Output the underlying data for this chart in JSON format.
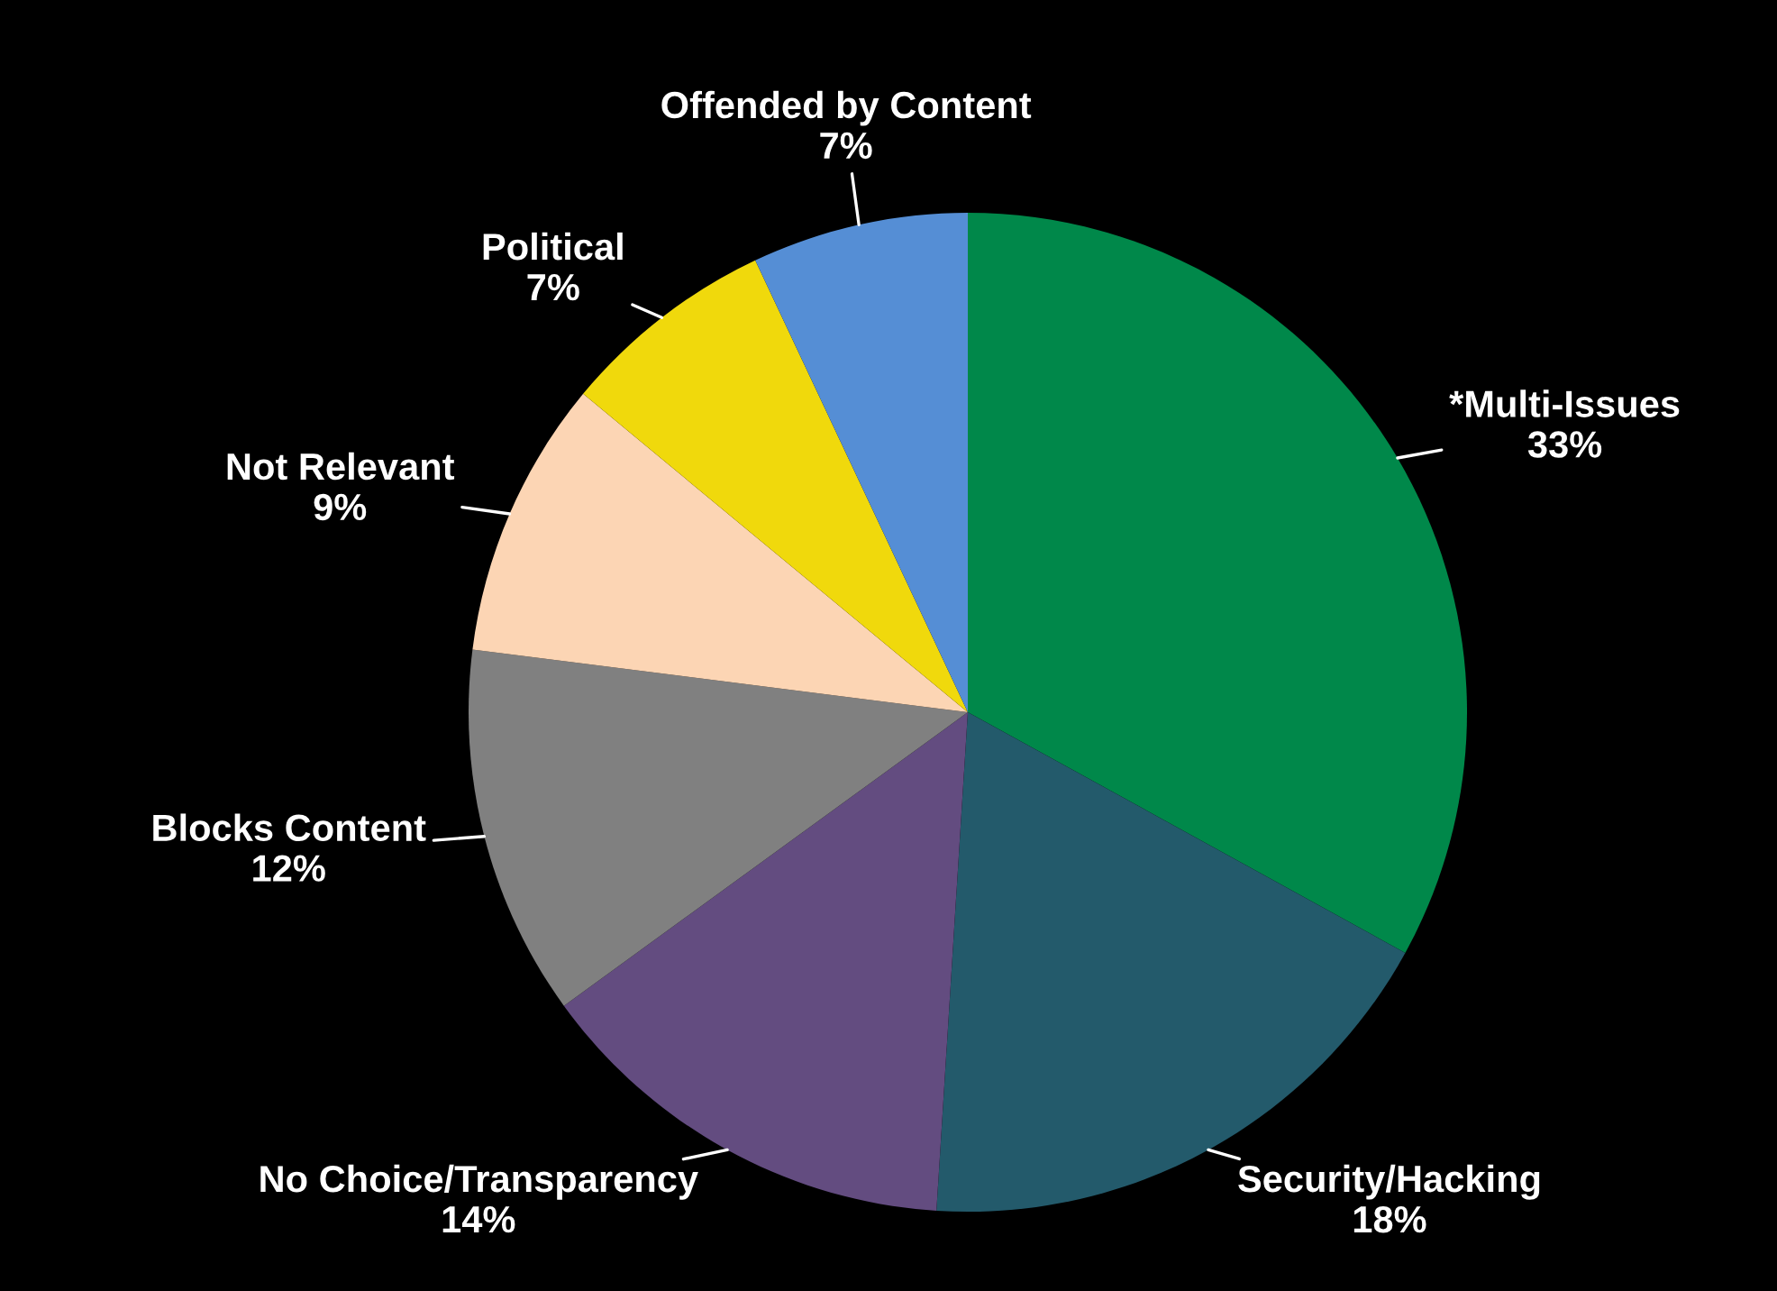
{
  "chart_data": {
    "type": "pie",
    "categories": [
      "*Multi-Issues",
      "Security/Hacking",
      "No Choice/Transparency",
      "Blocks Content",
      "Not Relevant",
      "Political",
      "Offended by Content"
    ],
    "values": [
      33,
      18,
      14,
      12,
      9,
      7,
      7
    ],
    "colors": [
      "#00884a",
      "#235a6b",
      "#634c80",
      "#808080",
      "#fcd5b4",
      "#f0d90c",
      "#558ed5"
    ],
    "value_labels": [
      "33%",
      "18%",
      "14%",
      "12%",
      "9%",
      "7%",
      "7%"
    ],
    "legend": false
  }
}
